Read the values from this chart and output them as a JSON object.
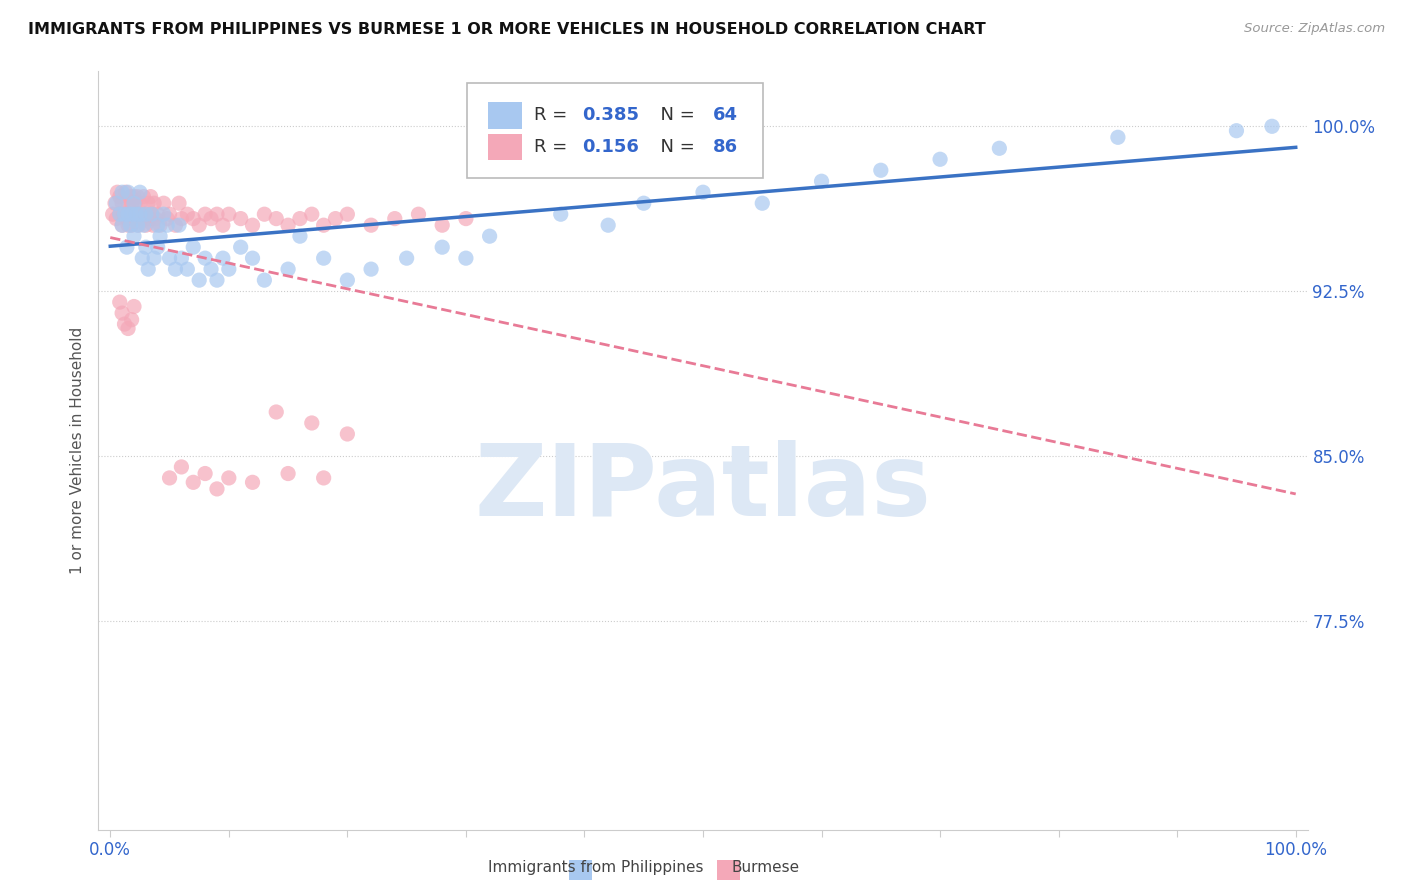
{
  "title": "IMMIGRANTS FROM PHILIPPINES VS BURMESE 1 OR MORE VEHICLES IN HOUSEHOLD CORRELATION CHART",
  "source": "Source: ZipAtlas.com",
  "ylabel": "1 or more Vehicles in Household",
  "ytick_labels": [
    "100.0%",
    "92.5%",
    "85.0%",
    "77.5%"
  ],
  "ytick_values": [
    1.0,
    0.925,
    0.85,
    0.775
  ],
  "ylim": [
    0.68,
    1.025
  ],
  "xlim": [
    -0.01,
    1.01
  ],
  "r_philippines": 0.385,
  "n_philippines": 64,
  "r_burmese": 0.156,
  "n_burmese": 86,
  "legend_label_1": "Immigrants from Philippines",
  "legend_label_2": "Burmese",
  "color_philippines": "#a8c8f0",
  "color_burmese": "#f4a8b8",
  "trendline_color_philippines": "#3a72c4",
  "trendline_color_burmese": "#e87a96",
  "watermark": "ZIPatlas",
  "watermark_color": "#dde8f5",
  "background_color": "#ffffff",
  "philippines_x": [
    0.005,
    0.008,
    0.01,
    0.01,
    0.012,
    0.014,
    0.015,
    0.015,
    0.017,
    0.018,
    0.02,
    0.02,
    0.022,
    0.023,
    0.025,
    0.025,
    0.027,
    0.028,
    0.03,
    0.03,
    0.032,
    0.035,
    0.037,
    0.04,
    0.04,
    0.042,
    0.045,
    0.048,
    0.05,
    0.055,
    0.058,
    0.06,
    0.065,
    0.07,
    0.075,
    0.08,
    0.085,
    0.09,
    0.095,
    0.1,
    0.11,
    0.12,
    0.13,
    0.15,
    0.16,
    0.18,
    0.2,
    0.22,
    0.25,
    0.28,
    0.3,
    0.32,
    0.38,
    0.42,
    0.45,
    0.5,
    0.55,
    0.6,
    0.65,
    0.7,
    0.75,
    0.85,
    0.95,
    0.98
  ],
  "philippines_y": [
    0.965,
    0.96,
    0.97,
    0.955,
    0.96,
    0.945,
    0.96,
    0.97,
    0.955,
    0.96,
    0.965,
    0.95,
    0.96,
    0.955,
    0.96,
    0.97,
    0.94,
    0.955,
    0.96,
    0.945,
    0.935,
    0.96,
    0.94,
    0.955,
    0.945,
    0.95,
    0.96,
    0.955,
    0.94,
    0.935,
    0.955,
    0.94,
    0.935,
    0.945,
    0.93,
    0.94,
    0.935,
    0.93,
    0.94,
    0.935,
    0.945,
    0.94,
    0.93,
    0.935,
    0.95,
    0.94,
    0.93,
    0.935,
    0.94,
    0.945,
    0.94,
    0.95,
    0.96,
    0.955,
    0.965,
    0.97,
    0.965,
    0.975,
    0.98,
    0.985,
    0.99,
    0.995,
    0.998,
    1.0
  ],
  "burmese_x": [
    0.002,
    0.004,
    0.005,
    0.006,
    0.008,
    0.008,
    0.01,
    0.01,
    0.012,
    0.013,
    0.014,
    0.015,
    0.015,
    0.016,
    0.017,
    0.018,
    0.018,
    0.019,
    0.02,
    0.02,
    0.021,
    0.022,
    0.023,
    0.024,
    0.025,
    0.025,
    0.026,
    0.028,
    0.03,
    0.03,
    0.032,
    0.033,
    0.034,
    0.035,
    0.036,
    0.037,
    0.038,
    0.04,
    0.042,
    0.045,
    0.048,
    0.05,
    0.055,
    0.058,
    0.06,
    0.065,
    0.07,
    0.075,
    0.08,
    0.085,
    0.09,
    0.095,
    0.1,
    0.11,
    0.12,
    0.13,
    0.14,
    0.15,
    0.16,
    0.17,
    0.18,
    0.19,
    0.2,
    0.22,
    0.24,
    0.26,
    0.28,
    0.3,
    0.14,
    0.17,
    0.2,
    0.05,
    0.06,
    0.07,
    0.08,
    0.09,
    0.1,
    0.12,
    0.15,
    0.18,
    0.008,
    0.01,
    0.012,
    0.015,
    0.018,
    0.02
  ],
  "burmese_y": [
    0.96,
    0.965,
    0.958,
    0.97,
    0.96,
    0.968,
    0.955,
    0.965,
    0.96,
    0.97,
    0.958,
    0.965,
    0.955,
    0.96,
    0.968,
    0.955,
    0.965,
    0.96,
    0.968,
    0.958,
    0.965,
    0.96,
    0.968,
    0.955,
    0.965,
    0.96,
    0.958,
    0.968,
    0.96,
    0.955,
    0.965,
    0.958,
    0.968,
    0.96,
    0.955,
    0.965,
    0.958,
    0.96,
    0.955,
    0.965,
    0.958,
    0.96,
    0.955,
    0.965,
    0.958,
    0.96,
    0.958,
    0.955,
    0.96,
    0.958,
    0.96,
    0.955,
    0.96,
    0.958,
    0.955,
    0.96,
    0.958,
    0.955,
    0.958,
    0.96,
    0.955,
    0.958,
    0.96,
    0.955,
    0.958,
    0.96,
    0.955,
    0.958,
    0.87,
    0.865,
    0.86,
    0.84,
    0.845,
    0.838,
    0.842,
    0.835,
    0.84,
    0.838,
    0.842,
    0.84,
    0.92,
    0.915,
    0.91,
    0.908,
    0.912,
    0.918
  ]
}
